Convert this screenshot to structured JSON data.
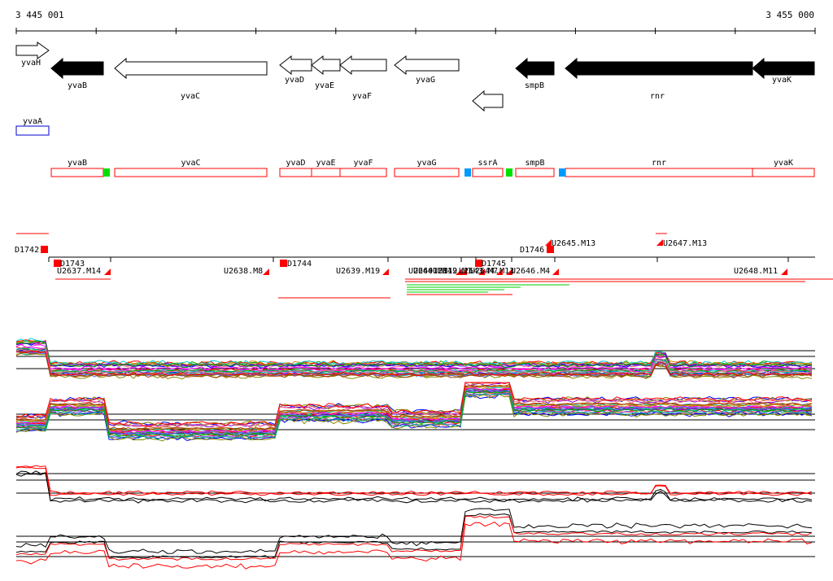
{
  "browser": {
    "coordinate_start": "3 445 001",
    "coordinate_end": "3 455 000",
    "colors": {
      "arrow_filled": "#000000",
      "arrow_outline": "#000000",
      "region_box": "#ff0000",
      "marker_green": "#00e000",
      "marker_blue": "#0099ff",
      "gene_box_blue": "#0000cc",
      "signal_red": "#ff0000"
    }
  },
  "genes": [
    {
      "label": "yvaH",
      "strand": "+",
      "style": "outline"
    },
    {
      "label": "yvaB",
      "strand": "-",
      "style": "filled"
    },
    {
      "label": "yvaC",
      "strand": "-",
      "style": "outline"
    },
    {
      "label": "yvaD",
      "strand": "-",
      "style": "outline"
    },
    {
      "label": "yvaE",
      "strand": "-",
      "style": "outline"
    },
    {
      "label": "yvaF",
      "strand": "-",
      "style": "outline"
    },
    {
      "label": "yvaG",
      "strand": "-",
      "style": "outline"
    },
    {
      "label": "",
      "strand": "-",
      "style": "outline"
    },
    {
      "label": "smpB",
      "strand": "-",
      "style": "filled"
    },
    {
      "label": "rnr",
      "strand": "-",
      "style": "filled"
    },
    {
      "label": "yvaK",
      "strand": "-",
      "style": "filled"
    }
  ],
  "feature_box": {
    "label": "yvaA"
  },
  "regions": [
    {
      "label": "yvaB"
    },
    {
      "label": "yvaC"
    },
    {
      "label": "yvaD"
    },
    {
      "label": "yvaE"
    },
    {
      "label": "yvaF"
    },
    {
      "label": "yvaG"
    },
    {
      "label": "ssrA"
    },
    {
      "label": "smpB"
    },
    {
      "label": "rnr"
    },
    {
      "label": "yvaK"
    }
  ],
  "segments": [
    {
      "label": "D1742"
    },
    {
      "label": "D1743"
    },
    {
      "label": "U2637.M14"
    },
    {
      "label": "U2638.M8"
    },
    {
      "label": "D1744"
    },
    {
      "label": "U2639.M19"
    },
    {
      "label": "U2640.M11"
    },
    {
      "label": "U2641.M19"
    },
    {
      "label": "U2642.M1"
    },
    {
      "label": "U2643.M7"
    },
    {
      "label": "D1745"
    },
    {
      "label": "U2644.M13"
    },
    {
      "label": "U2646.M4"
    },
    {
      "label": "D1746"
    },
    {
      "label": "U2645.M13"
    },
    {
      "label": "U2647.M13"
    },
    {
      "label": "U2648.M11"
    }
  ]
}
